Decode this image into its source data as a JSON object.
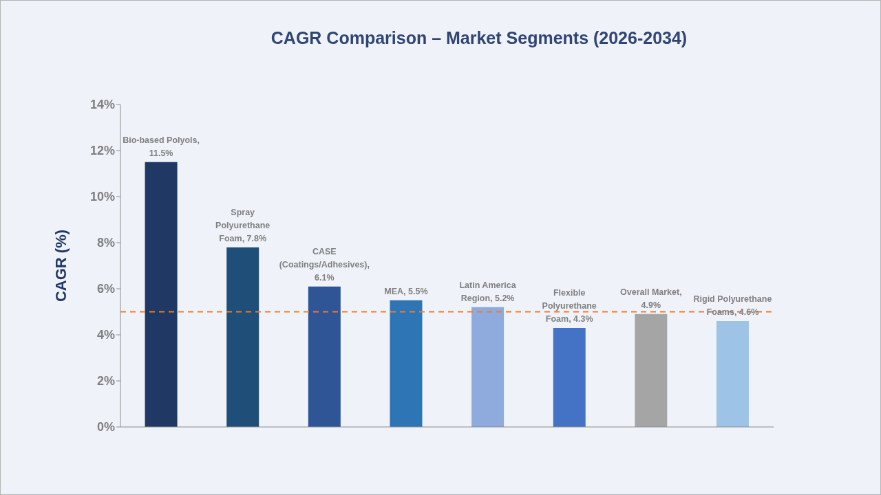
{
  "chart_data": {
    "type": "bar",
    "title": "CAGR Comparison – Market Segments (2026-2034)",
    "ylabel": "CAGR (%)",
    "categories": [
      null,
      null,
      null,
      null,
      null,
      null,
      null,
      null
    ],
    "values": [
      11.5,
      7.8,
      6.1,
      5.5,
      5.2,
      4.3,
      4.9,
      4.6
    ],
    "colors": [
      "#1f3864",
      "#1f4e79",
      "#2f5597",
      "#2e75b6",
      "#8faadc",
      "#4472c4",
      "#a5a5a5",
      "#9dc3e6"
    ],
    "value_labels": [
      "Bio-based Polyols, 11.5%",
      "Spray Polyurethane Foam, 7.8%",
      "CASE (Coatings/Adhesives), 6.1%",
      "MEA, 5.5%",
      "Latin America Region, 5.2%",
      "Flexible Polyurethane Foam, 4.3%",
      "Overall Market, 4.9%",
      "Rigid Polyurethane Foams, 4.6%"
    ],
    "ylim": [
      0,
      14
    ],
    "yticks": [
      {
        "value": 0,
        "label": "0%"
      },
      {
        "value": 2,
        "label": "2%"
      },
      {
        "value": 4,
        "label": "4%"
      },
      {
        "value": 6,
        "label": "6%"
      },
      {
        "value": 8,
        "label": "8%"
      },
      {
        "value": 10,
        "label": "10%"
      },
      {
        "value": 12,
        "label": "12%"
      },
      {
        "value": 14,
        "label": "14%"
      }
    ],
    "tick_labels": "y",
    "ref_lines": [
      {
        "axis": "y",
        "value": 5,
        "color": "#ed7d31",
        "line_style": "dashed"
      }
    ]
  }
}
